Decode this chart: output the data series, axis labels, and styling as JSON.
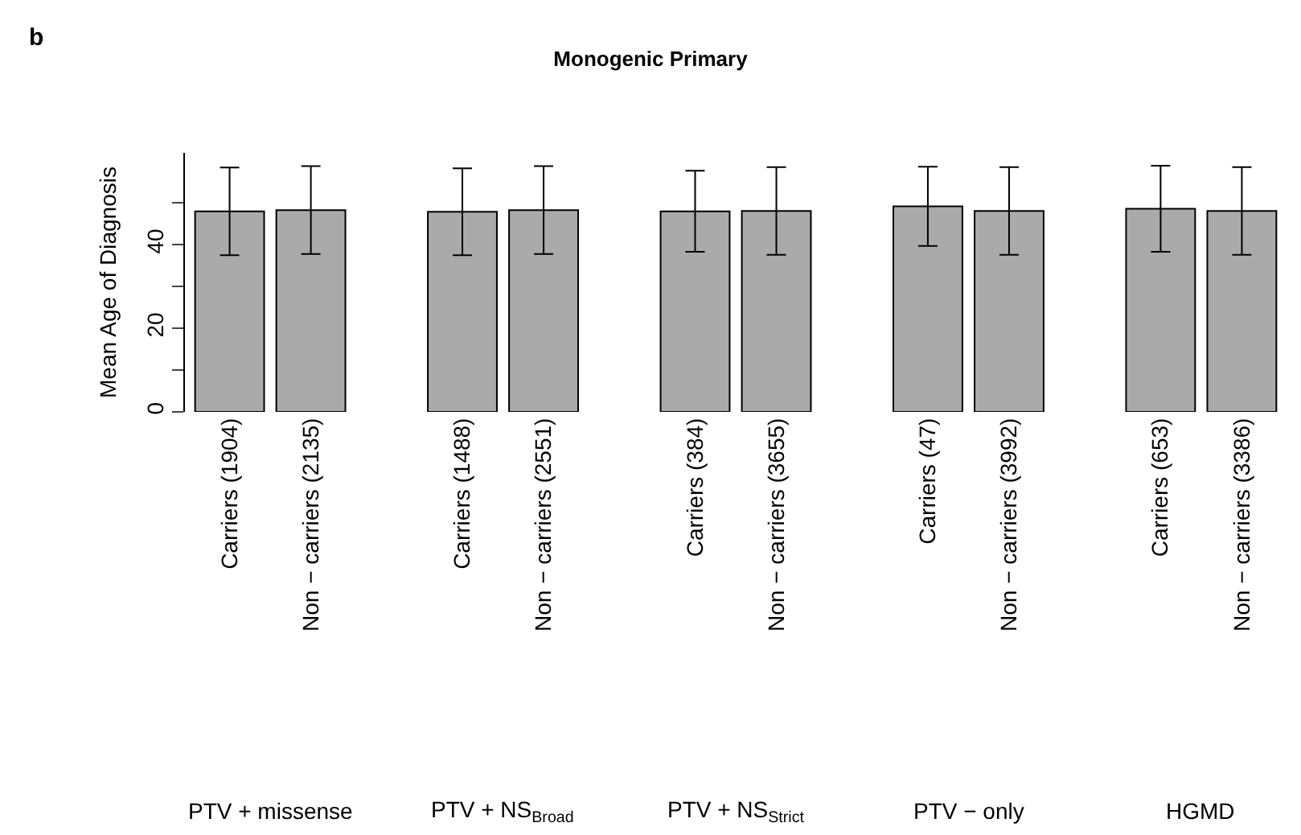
{
  "chart_data": {
    "type": "bar",
    "title": "Monogenic Primary",
    "ylabel": "Mean Age of Diagnosis",
    "categories": [
      "Carriers (1904)",
      "Non − carriers (2135)",
      "Carriers (1488)",
      "Non − carriers (2551)",
      "Carriers (384)",
      "Non − carriers (3655)",
      "Carriers (47)",
      "Non − carriers (3992)",
      "Carriers (653)",
      "Non − carriers (3386)"
    ],
    "values": [
      48.0,
      48.3,
      47.9,
      48.3,
      48.0,
      48.1,
      49.2,
      48.1,
      48.6,
      48.1
    ],
    "errors": [
      10.5,
      10.5,
      10.4,
      10.5,
      9.7,
      10.5,
      9.5,
      10.5,
      10.3,
      10.5
    ],
    "color": "#aaaaaa",
    "ylim": [
      0,
      62
    ],
    "yticks": [
      0,
      {
        "value": 10,
        "label": null
      },
      20,
      {
        "value": 30,
        "label": null
      },
      40,
      {
        "value": 50,
        "label": null
      }
    ],
    "annotations": [
      "b",
      "PTV + missense",
      "PTV + NS$_{Broad}$",
      "PTV + NS$_{Strict}$",
      "PTV − only",
      "HGMD"
    ]
  }
}
